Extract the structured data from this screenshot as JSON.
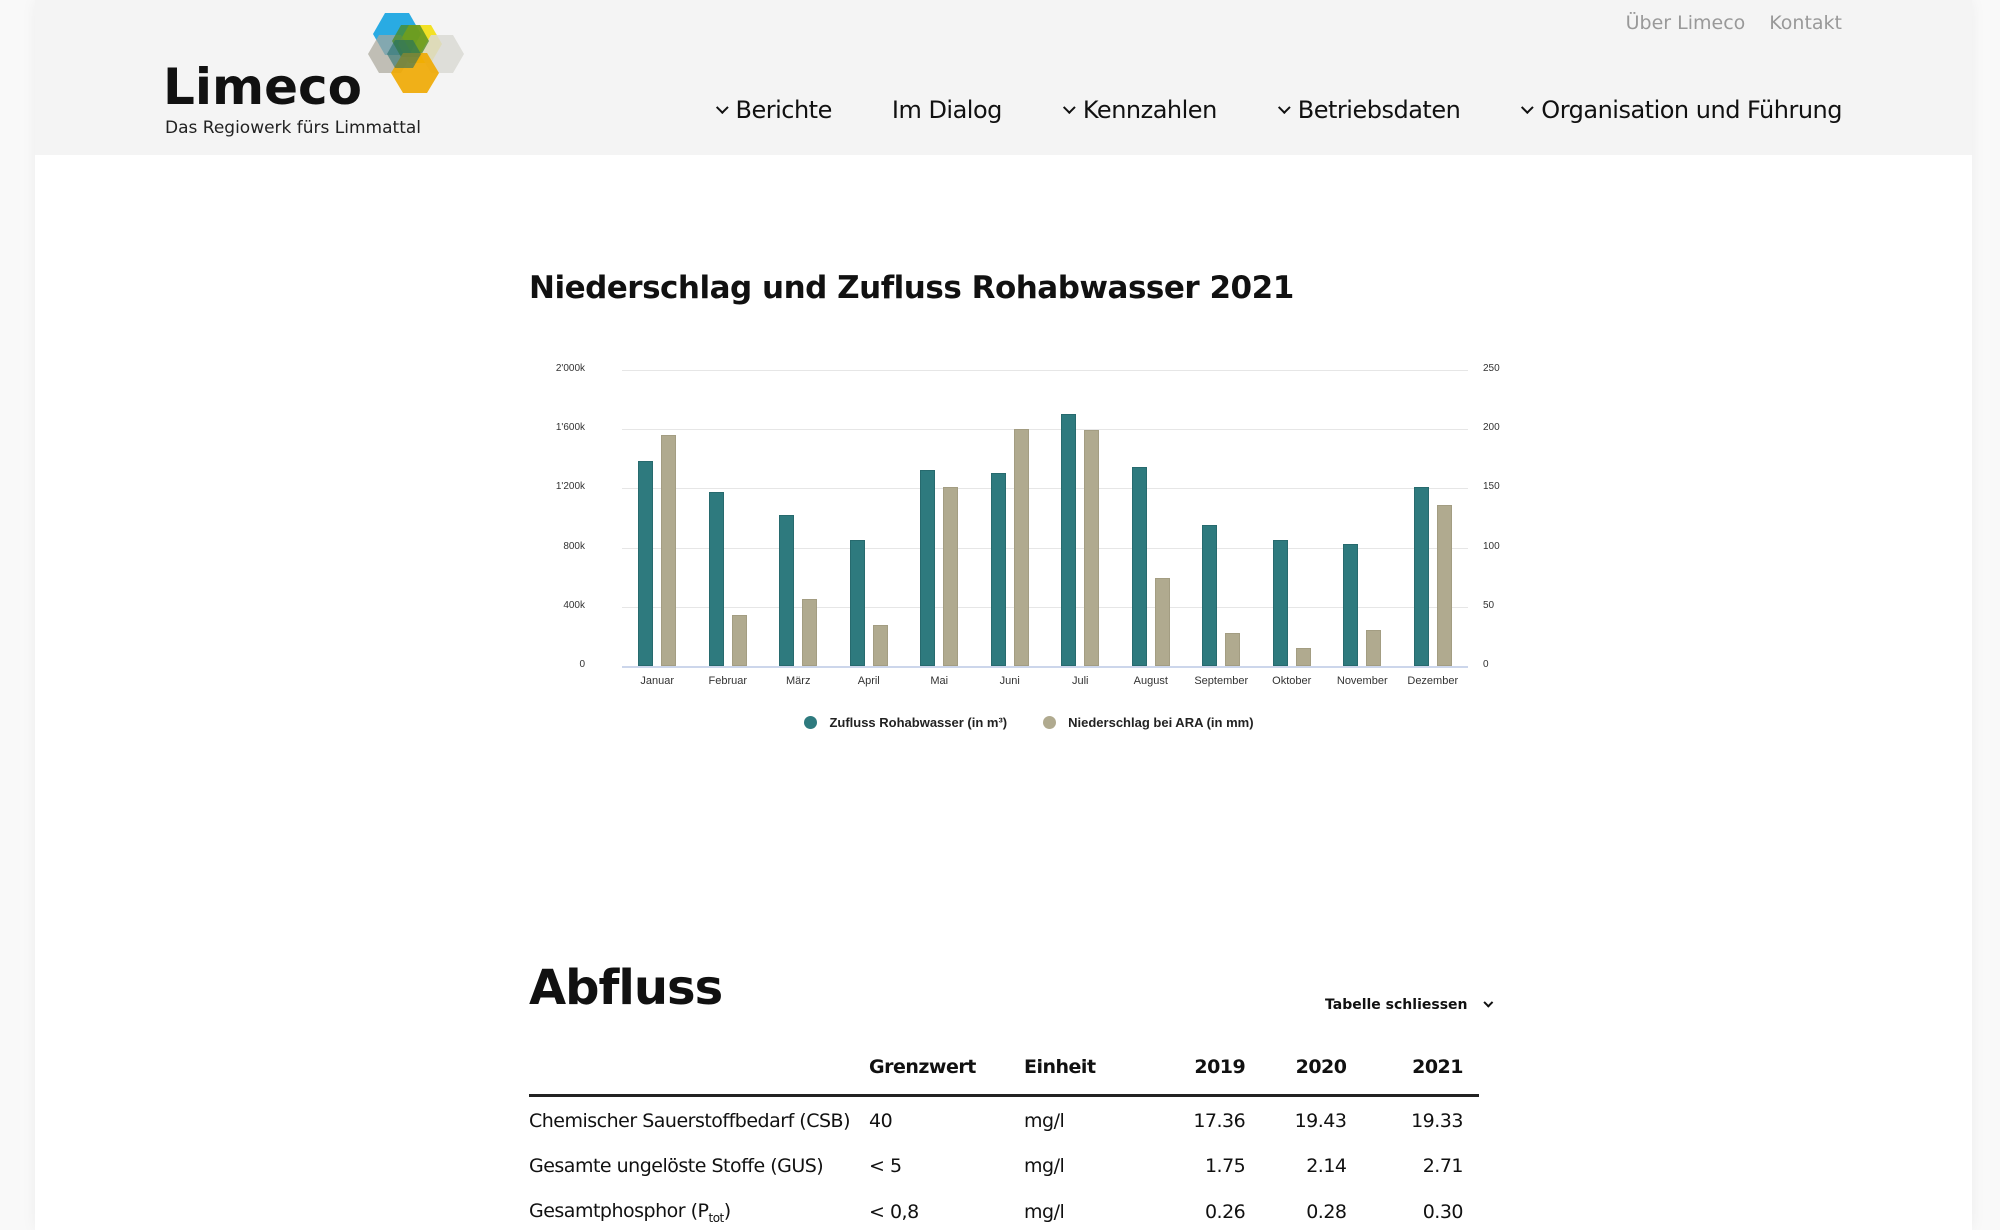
{
  "header": {
    "logo": {
      "name": "Limeco",
      "tagline": "Das Regiowerk fürs Limmattal"
    },
    "utility_links": [
      "Über Limeco",
      "Kontakt"
    ],
    "nav": [
      {
        "label": "Berichte",
        "has_dropdown": true
      },
      {
        "label": "Im Dialog",
        "has_dropdown": false
      },
      {
        "label": "Kennzahlen",
        "has_dropdown": true
      },
      {
        "label": "Betriebsdaten",
        "has_dropdown": true
      },
      {
        "label": "Organisation und Führung",
        "has_dropdown": true
      }
    ]
  },
  "chart_section": {
    "title": "Niederschlag und Zufluss Rohabwasser 2021"
  },
  "chart_data": {
    "type": "bar",
    "title": "Niederschlag und Zufluss Rohabwasser 2021",
    "categories": [
      "Januar",
      "Februar",
      "März",
      "April",
      "Mai",
      "Juni",
      "Juli",
      "August",
      "September",
      "Oktober",
      "November",
      "Dezember"
    ],
    "series": [
      {
        "name": "Zufluss Rohabwasser (in m³)",
        "axis": "left",
        "color": "#2e7a7e",
        "values": [
          1385000,
          1177000,
          1022000,
          848000,
          1325000,
          1307000,
          1706000,
          1342000,
          952000,
          848000,
          822000,
          1212000
        ]
      },
      {
        "name": "Niederschlag bei ARA (in mm)",
        "axis": "right",
        "color": "#b0aa8f",
        "values": [
          195,
          43,
          57,
          35,
          151,
          200,
          199,
          74,
          28,
          15,
          30,
          136
        ]
      }
    ],
    "y_left": {
      "ticks": [
        "0",
        "400k",
        "800k",
        "1'200k",
        "1'600k",
        "2'000k"
      ],
      "range": [
        0,
        2000000
      ]
    },
    "y_right": {
      "ticks": [
        "0",
        "50",
        "100",
        "150",
        "200",
        "250"
      ],
      "range": [
        0,
        250
      ]
    },
    "xlabel": "",
    "ylabel": "",
    "grid": true,
    "legend_position": "bottom"
  },
  "abfluss": {
    "title": "Abfluss",
    "toggle_label": "Tabelle schliessen",
    "columns": [
      "",
      "Grenzwert",
      "Einheit",
      "2019",
      "2020",
      "2021"
    ],
    "rows": [
      {
        "name": "Chemischer Sauerstoffbedarf (CSB)",
        "grenzwert": "40",
        "einheit": "mg/l",
        "v2019": "17.36",
        "v2020": "19.43",
        "v2021": "19.33"
      },
      {
        "name": "Gesamte ungelöste Stoffe (GUS)",
        "grenzwert": "< 5",
        "einheit": "mg/l",
        "v2019": "1.75",
        "v2020": "2.14",
        "v2021": "2.71"
      },
      {
        "name": "Gesamtphosphor (P",
        "name_sub": "tot",
        "name_suffix": ")",
        "grenzwert": "< 0,8",
        "einheit": "mg/l",
        "v2019": "0.26",
        "v2020": "0.28",
        "v2021": "0.30"
      }
    ]
  }
}
